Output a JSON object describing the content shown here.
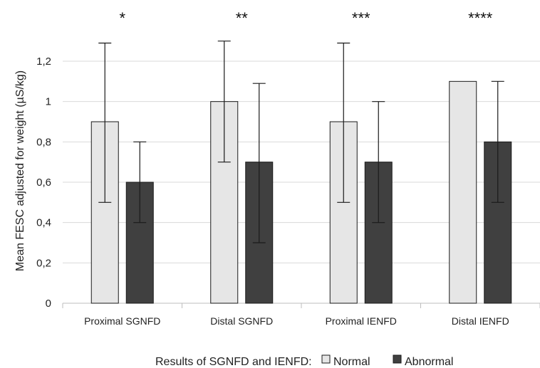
{
  "chart_data": {
    "type": "bar",
    "categories": [
      "Proximal SGNFD",
      "Distal SGNFD",
      "Proximal IENFD",
      "Distal IENFD"
    ],
    "series": [
      {
        "name": "Normal",
        "color": "#e6e6e6",
        "values": [
          0.9,
          1.0,
          0.9,
          1.1
        ],
        "err_low": [
          0.5,
          0.7,
          0.5,
          null
        ],
        "err_high": [
          1.29,
          1.3,
          1.29,
          null
        ]
      },
      {
        "name": "Abnormal",
        "color": "#404040",
        "values": [
          0.6,
          0.7,
          0.7,
          0.8
        ],
        "err_low": [
          0.4,
          0.3,
          0.4,
          0.5
        ],
        "err_high": [
          0.8,
          1.09,
          1.0,
          1.1
        ]
      }
    ],
    "significance": [
      "*",
      "**",
      "***",
      "****"
    ],
    "ylabel": "Mean FESC adjusted for weight (µS/kg)",
    "yticks": [
      "0",
      "0,2",
      "0,4",
      "0,6",
      "0,8",
      "1",
      "1,2"
    ],
    "ylim": [
      0,
      1.3
    ],
    "grid": true,
    "legend": {
      "title": "Results of SGNFD and IENFD:",
      "position": "bottom"
    }
  }
}
